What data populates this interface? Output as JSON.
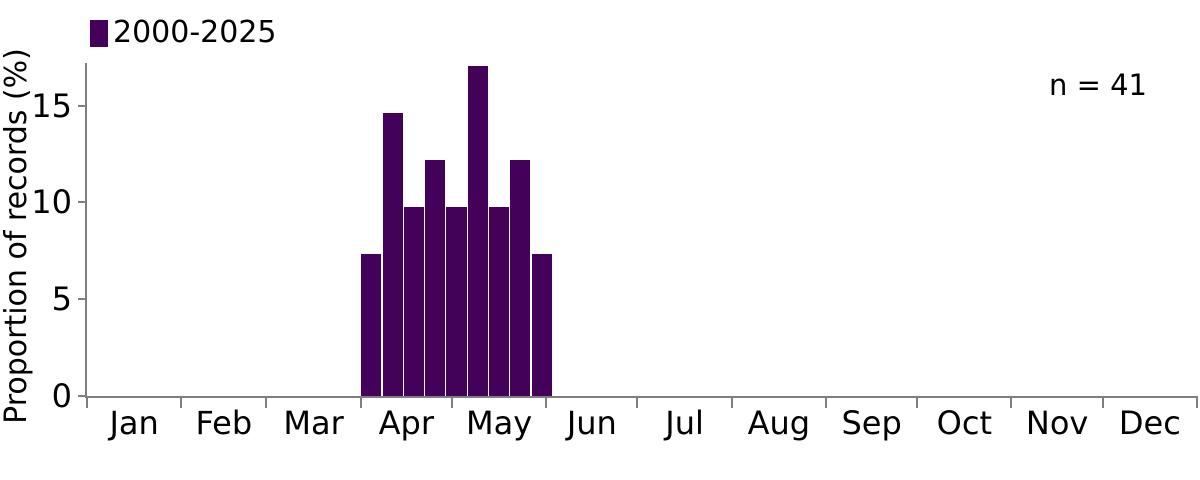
{
  "chart_data": {
    "type": "bar",
    "title": "",
    "xlabel": "",
    "ylabel": "Proportion of records (%)",
    "sample_size_label": "n = 41",
    "n": 41,
    "legend": {
      "label": "2000-2025",
      "position": "top-left"
    },
    "colors": {
      "bar": "#440159",
      "axis": "#7f7f7f",
      "text": "#000000",
      "background": "#ffffff"
    },
    "grid": false,
    "x_axis": {
      "unit": "day_of_year",
      "tick_positions": "month_starts",
      "month_labels": [
        "Jan",
        "Feb",
        "Mar",
        "Apr",
        "May",
        "Jun",
        "Jul",
        "Aug",
        "Sep",
        "Oct",
        "Nov",
        "Dec"
      ],
      "month_days": [
        31,
        28,
        31,
        30,
        31,
        30,
        31,
        31,
        30,
        31,
        30,
        31
      ]
    },
    "y_axis": {
      "ticks": [
        0,
        5,
        10,
        15
      ],
      "ylim": [
        0,
        17.2
      ]
    },
    "series": [
      {
        "name": "2000-2025",
        "bin_width_days": 7,
        "first_bin_start_day_of_year": 91,
        "values_pct": [
          7.32,
          14.63,
          9.76,
          12.2,
          9.76,
          17.07,
          9.76,
          12.2,
          7.32
        ]
      }
    ]
  }
}
